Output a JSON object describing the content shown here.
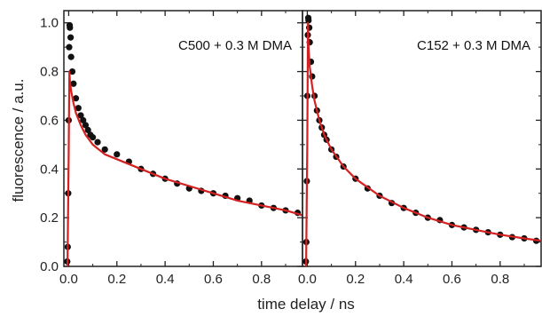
{
  "chart_data": {
    "type": "scatter",
    "ylabel": "fluorescence / a.u.",
    "xlabel": "time delay / ns",
    "ylim": [
      0.0,
      1.05
    ],
    "yticks": [
      {
        "value": 0.0,
        "label": "0.0"
      },
      {
        "value": 0.2,
        "label": "0.2"
      },
      {
        "value": 0.4,
        "label": "0.4"
      },
      {
        "value": 0.6,
        "label": "0.6"
      },
      {
        "value": 0.8,
        "label": "0.8"
      },
      {
        "value": 1.0,
        "label": "1.0"
      }
    ],
    "xticks": [
      {
        "value": 0.0,
        "label": "0.0"
      },
      {
        "value": 0.2,
        "label": "0.2"
      },
      {
        "value": 0.4,
        "label": "0.4"
      },
      {
        "value": 0.6,
        "label": "0.6"
      },
      {
        "value": 0.8,
        "label": "0.8"
      }
    ],
    "colors": {
      "points": "#111111",
      "fit": "#d42020",
      "axes": "#222222"
    },
    "panels": [
      {
        "annotation": "C500 + 0.3 M DMA",
        "xlim": [
          -0.02,
          0.97
        ],
        "fit": {
          "x": [
            -0.005,
            0.0,
            0.003,
            0.005,
            0.01,
            0.02,
            0.03,
            0.05,
            0.07,
            0.1,
            0.15,
            0.2,
            0.3,
            0.4,
            0.5,
            0.6,
            0.7,
            0.8,
            0.9,
            0.97
          ],
          "y": [
            0.0,
            0.45,
            0.8,
            0.76,
            0.72,
            0.67,
            0.63,
            0.58,
            0.54,
            0.5,
            0.46,
            0.44,
            0.4,
            0.36,
            0.33,
            0.3,
            0.27,
            0.25,
            0.23,
            0.21
          ]
        },
        "points": {
          "x": [
            -0.006,
            -0.004,
            -0.002,
            0.0,
            0.002,
            0.004,
            0.005,
            0.008,
            0.01,
            0.015,
            0.02,
            0.03,
            0.04,
            0.05,
            0.06,
            0.07,
            0.08,
            0.09,
            0.1,
            0.12,
            0.15,
            0.2,
            0.25,
            0.3,
            0.35,
            0.4,
            0.45,
            0.5,
            0.55,
            0.6,
            0.65,
            0.7,
            0.75,
            0.8,
            0.85,
            0.9,
            0.95
          ],
          "y": [
            0.02,
            0.08,
            0.3,
            0.6,
            0.9,
            0.99,
            0.98,
            0.94,
            0.86,
            0.8,
            0.75,
            0.69,
            0.65,
            0.62,
            0.6,
            0.58,
            0.56,
            0.54,
            0.53,
            0.51,
            0.48,
            0.46,
            0.43,
            0.4,
            0.38,
            0.36,
            0.34,
            0.32,
            0.31,
            0.3,
            0.29,
            0.28,
            0.27,
            0.25,
            0.24,
            0.23,
            0.22
          ]
        }
      },
      {
        "annotation": "C152 + 0.3 M DMA",
        "xlim": [
          -0.02,
          0.97
        ],
        "fit": {
          "x": [
            -0.005,
            0.0,
            0.003,
            0.005,
            0.01,
            0.02,
            0.03,
            0.05,
            0.07,
            0.1,
            0.15,
            0.2,
            0.3,
            0.4,
            0.5,
            0.6,
            0.7,
            0.8,
            0.9,
            0.97
          ],
          "y": [
            0.0,
            0.5,
            1.0,
            0.9,
            0.82,
            0.74,
            0.68,
            0.6,
            0.54,
            0.48,
            0.41,
            0.36,
            0.29,
            0.24,
            0.2,
            0.17,
            0.15,
            0.13,
            0.115,
            0.105
          ]
        },
        "points": {
          "x": [
            -0.006,
            -0.004,
            -0.002,
            0.0,
            0.002,
            0.004,
            0.005,
            0.008,
            0.01,
            0.015,
            0.02,
            0.03,
            0.04,
            0.05,
            0.06,
            0.07,
            0.08,
            0.1,
            0.12,
            0.15,
            0.2,
            0.25,
            0.3,
            0.35,
            0.4,
            0.45,
            0.5,
            0.55,
            0.6,
            0.65,
            0.7,
            0.75,
            0.8,
            0.85,
            0.9,
            0.95
          ],
          "y": [
            0.02,
            0.1,
            0.35,
            0.7,
            0.95,
            1.02,
            1.01,
            0.98,
            0.92,
            0.84,
            0.78,
            0.7,
            0.64,
            0.6,
            0.57,
            0.54,
            0.52,
            0.48,
            0.45,
            0.41,
            0.36,
            0.32,
            0.29,
            0.26,
            0.24,
            0.22,
            0.2,
            0.19,
            0.17,
            0.16,
            0.15,
            0.14,
            0.13,
            0.12,
            0.115,
            0.105
          ]
        }
      }
    ]
  }
}
